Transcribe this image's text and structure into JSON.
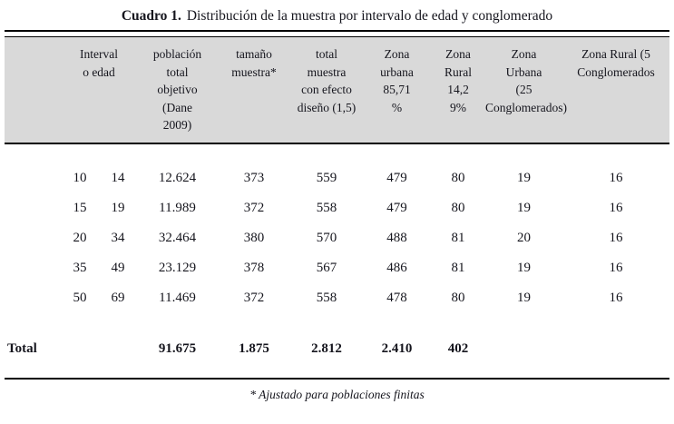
{
  "title": {
    "caption_label": "Cuadro 1.",
    "text": "Distribución de la muestra por intervalo de edad y conglomerado"
  },
  "table": {
    "headers": {
      "intervalo_edad": "Interval\no edad",
      "poblacion_total": "población\ntotal\nobjetivo\n(Dane\n2009)",
      "tamano_muestra": "tamaño\nmuestra*",
      "total_muestra_efecto": "total\nmuestra\ncon efecto\ndiseño (1,5)",
      "zona_urbana_pct": "Zona\nurbana\n85,71\n%",
      "zona_rural_pct": "Zona\nRural\n14,2\n9%",
      "zona_urbana_cong": "Zona\nUrbana\n(25\nConglomerados)",
      "zona_rural_cong": "Zona Rural (5\nConglomerados"
    },
    "rows": [
      [
        "10",
        "14",
        "12.624",
        "373",
        "559",
        "479",
        "80",
        "19",
        "16"
      ],
      [
        "15",
        "19",
        "11.989",
        "372",
        "558",
        "479",
        "80",
        "19",
        "16"
      ],
      [
        "20",
        "34",
        "32.464",
        "380",
        "570",
        "488",
        "81",
        "20",
        "16"
      ],
      [
        "35",
        "49",
        "23.129",
        "378",
        "567",
        "486",
        "81",
        "19",
        "16"
      ],
      [
        "50",
        "69",
        "11.469",
        "372",
        "558",
        "478",
        "80",
        "19",
        "16"
      ]
    ],
    "total_row": {
      "label": "Total",
      "poblacion_total": "91.675",
      "tamano_muestra": "1.875",
      "total_muestra_efecto": "2.812",
      "zona_urbana_pct": "2.410",
      "zona_rural_pct": "402"
    }
  },
  "footnote": "* Ajustado para poblaciones finitas",
  "colors": {
    "header_bg": "#d9d9d9",
    "text": "#15151d",
    "rule": "#000000"
  }
}
